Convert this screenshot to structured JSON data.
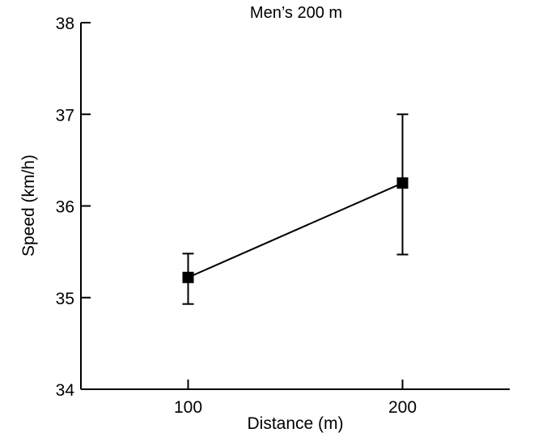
{
  "chart_data": {
    "type": "line",
    "title": "Men’s 200 m",
    "xlabel": "Distance (m)",
    "ylabel": "Speed (km/h)",
    "xlim": [
      50,
      250
    ],
    "ylim": [
      34,
      38
    ],
    "x_ticks": [
      100,
      200
    ],
    "x_tick_labels": [
      "100",
      "200"
    ],
    "y_ticks": [
      34,
      35,
      36,
      37,
      38
    ],
    "y_tick_labels": [
      "34",
      "35",
      "36",
      "37",
      "38"
    ],
    "grid": false,
    "series": [
      {
        "name": "Men's 200 m",
        "x": [
          100,
          200
        ],
        "y": [
          35.22,
          36.25
        ],
        "error_low": [
          34.93,
          35.47
        ],
        "error_high": [
          35.48,
          37.0
        ],
        "marker": "square",
        "color": "#000000"
      }
    ]
  }
}
